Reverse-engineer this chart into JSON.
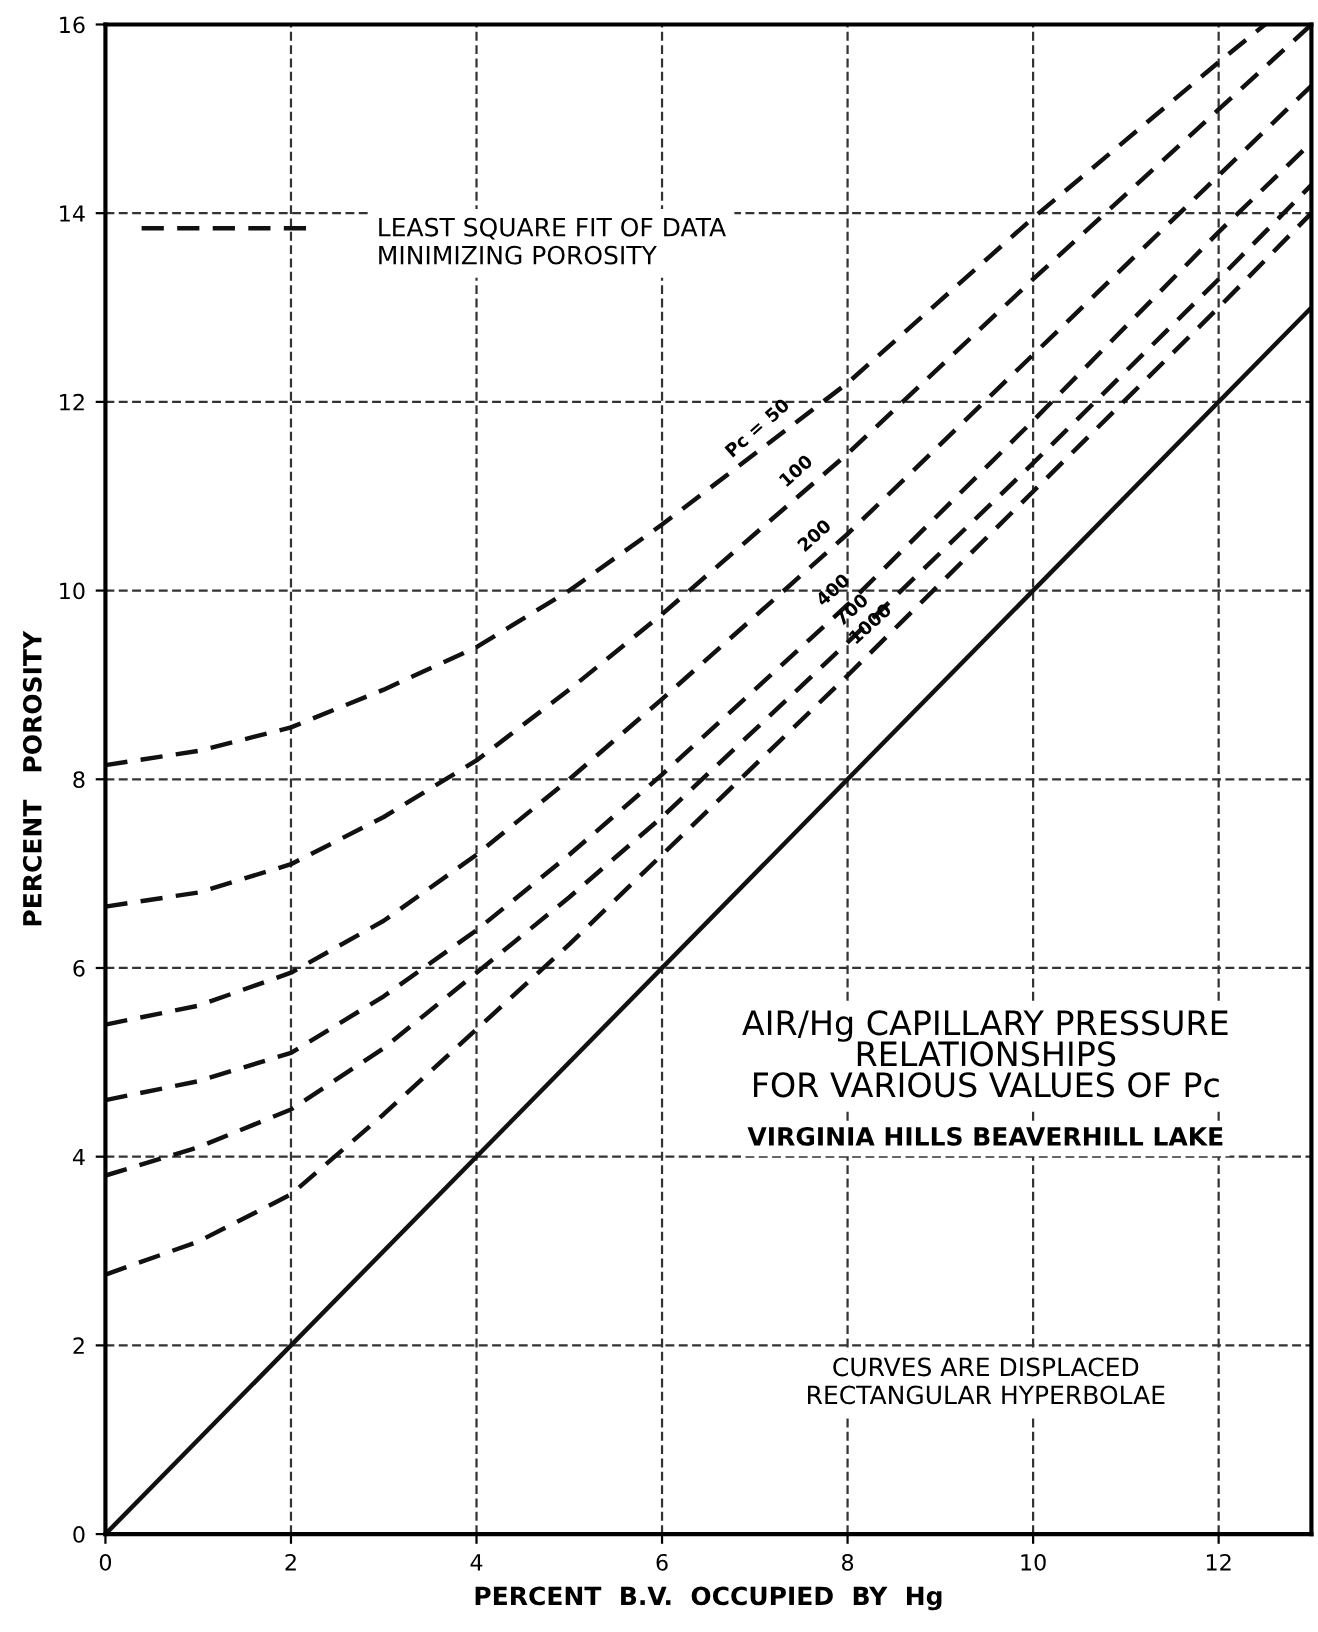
{
  "chart_data": {
    "type": "line",
    "title": "AIR/Hg CAPILLARY PRESSURE\nRELATIONSHIPS\nFOR VARIOUS VALUES OF Pc",
    "subtitle": "VIRGINIA HILLS BEAVERHILL LAKE",
    "xlabel": "PERCENT  B.V.  OCCUPIED  BY  Hg",
    "ylabel": "PERCENT   POROSITY",
    "annotations": [
      "LEAST SQUARE FIT OF DATA\nMINIMIZING POROSITY",
      "Pc =",
      "CURVES ARE DISPLACED\nRECTANGULAR HYPERBOLAE"
    ],
    "x": [
      0,
      1,
      2,
      3,
      4,
      5,
      6,
      8,
      10,
      12,
      13
    ],
    "series": [
      {
        "name": "50",
        "color": "#111111",
        "line_style": "dashed",
        "x": [
          0,
          1,
          2,
          3,
          4,
          5,
          6,
          8,
          10,
          12,
          12.5
        ],
        "values": [
          8.15,
          8.3,
          8.55,
          8.95,
          9.4,
          10.0,
          10.7,
          12.2,
          13.95,
          15.6,
          16.0
        ]
      },
      {
        "name": "100",
        "color": "#111111",
        "line_style": "dashed",
        "values": [
          6.65,
          6.8,
          7.1,
          7.6,
          8.2,
          8.95,
          9.75,
          11.45,
          13.3,
          15.1,
          16.0
        ]
      },
      {
        "name": "200",
        "color": "#111111",
        "line_style": "dashed",
        "values": [
          5.4,
          5.6,
          5.95,
          6.5,
          7.2,
          8.0,
          8.85,
          10.6,
          12.5,
          14.4,
          15.35
        ]
      },
      {
        "name": "400",
        "color": "#111111",
        "line_style": "dashed",
        "values": [
          4.6,
          4.8,
          5.1,
          5.7,
          6.4,
          7.2,
          8.05,
          9.85,
          11.8,
          13.8,
          14.75
        ]
      },
      {
        "name": "700",
        "color": "#111111",
        "line_style": "dashed",
        "values": [
          3.8,
          4.1,
          4.5,
          5.15,
          5.95,
          6.75,
          7.6,
          9.45,
          11.35,
          13.3,
          14.3
        ]
      },
      {
        "name": "1000",
        "color": "#111111",
        "line_style": "dashed",
        "values": [
          2.75,
          3.1,
          3.6,
          4.45,
          5.35,
          6.25,
          7.2,
          9.1,
          11.05,
          13.0,
          14.0
        ]
      },
      {
        "color": "#111111",
        "line_style": "solid",
        "x": [
          0,
          13
        ],
        "values": [
          0,
          13
        ]
      }
    ],
    "xlim": [
      0,
      13
    ],
    "ylim": [
      0,
      16
    ],
    "xticks": [
      0,
      2,
      4,
      6,
      8,
      10,
      12
    ],
    "yticks": [
      0,
      2,
      4,
      6,
      8,
      10,
      12,
      14,
      16
    ],
    "grid": true,
    "marker": "none"
  }
}
